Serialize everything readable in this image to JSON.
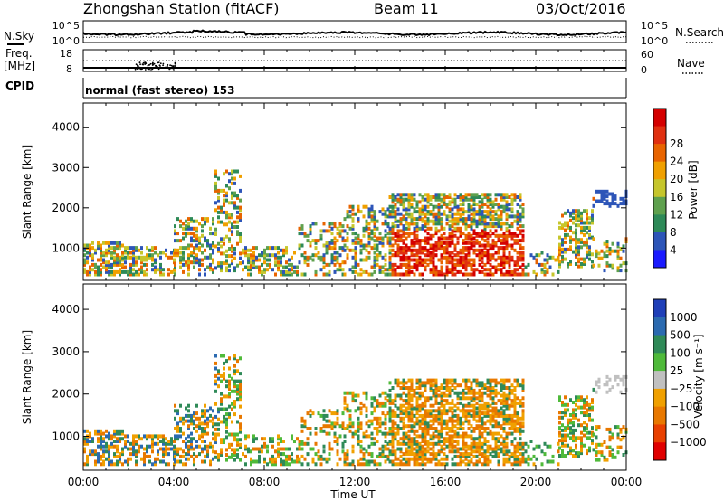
{
  "header": {
    "title": "Zhongshan Station (fitACF)",
    "beam": "Beam 11",
    "date": "03/Oct/2016"
  },
  "strip1": {
    "left_label": "N.Sky",
    "right_label": "N.Search",
    "left_ticks": [
      "10^5",
      "10^0"
    ],
    "right_ticks": [
      "10^5",
      "10^0"
    ]
  },
  "strip2": {
    "left_label_1": "Freq.",
    "left_label_2": "[MHz]",
    "right_label": "Nave",
    "left_ticks": [
      "18",
      "8"
    ],
    "right_ticks": [
      "60",
      "0"
    ]
  },
  "cpid": {
    "label": "CPID",
    "text": "normal (fast stereo) 153"
  },
  "chart_data": [
    {
      "type": "heatmap",
      "name": "Power",
      "ylabel": "Slant Range [km]",
      "yticks": [
        "1000",
        "2000",
        "3000",
        "4000"
      ],
      "ylim": [
        200,
        4600
      ],
      "xlim": [
        0,
        24
      ],
      "colorbar_label": "Power [dB]",
      "colorbar_ticks": [
        "4",
        "8",
        "12",
        "16",
        "20",
        "24",
        "28"
      ],
      "colors": [
        "#1a1aff",
        "#2d55b8",
        "#2e8a58",
        "#5fa14e",
        "#c6c62c",
        "#f0a000",
        "#e86400",
        "#e03010",
        "#d40000"
      ]
    },
    {
      "type": "heatmap",
      "name": "Velocity",
      "ylabel": "Slant Range [km]",
      "yticks": [
        "1000",
        "2000",
        "3000",
        "4000"
      ],
      "ylim": [
        200,
        4600
      ],
      "xlim": [
        0,
        24
      ],
      "colorbar_label": "Velocity [m s⁻¹]",
      "colorbar_ticks": [
        "1000",
        "500",
        "100",
        "25",
        "−25",
        "−100",
        "−500",
        "−1000"
      ],
      "colors": [
        "#1f3fb8",
        "#2b6ab0",
        "#2f8a58",
        "#4fba3a",
        "#c0c0c0",
        "#f0a000",
        "#e87800",
        "#e84000",
        "#e00000"
      ]
    }
  ],
  "xaxis": {
    "ticks": [
      "00:00",
      "04:00",
      "08:00",
      "12:00",
      "16:00",
      "20:00",
      "00:00"
    ],
    "label": "Time UT"
  }
}
